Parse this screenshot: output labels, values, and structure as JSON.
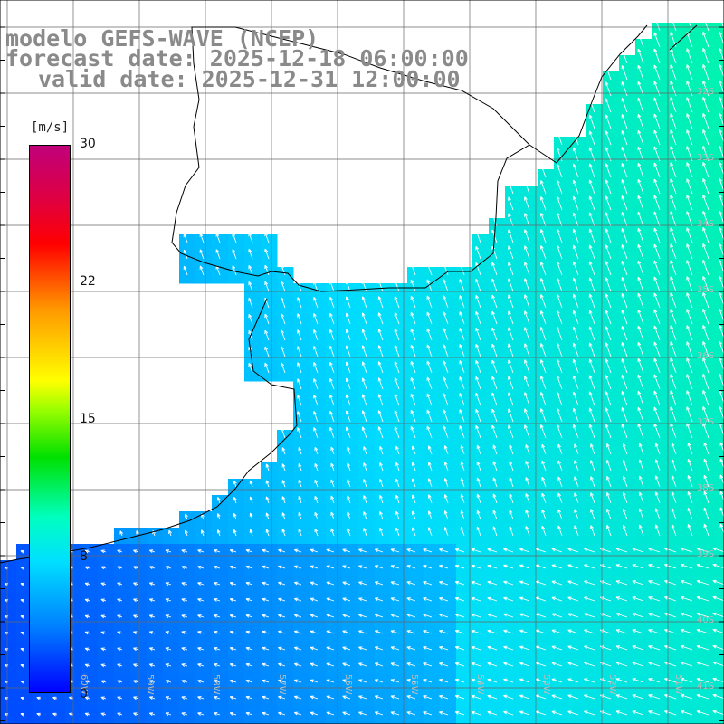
{
  "header": {
    "model": "modelo GEFS-WAVE (NCEP)",
    "forecast": "forecast date: 2025-12-18 06:00:00",
    "valid": "valid date: 2025-12-31 12:00:00"
  },
  "colorbar": {
    "unit": "[m/s]",
    "ticks": [
      "30",
      "22",
      "15",
      "8",
      "0"
    ],
    "range": [
      0,
      30
    ],
    "colors": [
      "#0000ff",
      "#0080ff",
      "#00e0ff",
      "#00ffc0",
      "#00e000",
      "#ffff00",
      "#ff9900",
      "#ff0000",
      "#c0007a"
    ]
  },
  "map": {
    "lat_labels": [
      "32S",
      "33S",
      "34S",
      "35S",
      "36S",
      "37S",
      "38S",
      "39S",
      "40S",
      "41S"
    ],
    "lon_labels": [
      "60W",
      "59W",
      "58W",
      "57W",
      "56W",
      "55W",
      "54W",
      "53W",
      "52W",
      "51W"
    ],
    "ocean_palette": {
      "low": "#0040ff",
      "mid": "#00c8ff",
      "high": "#00ffa0"
    }
  }
}
